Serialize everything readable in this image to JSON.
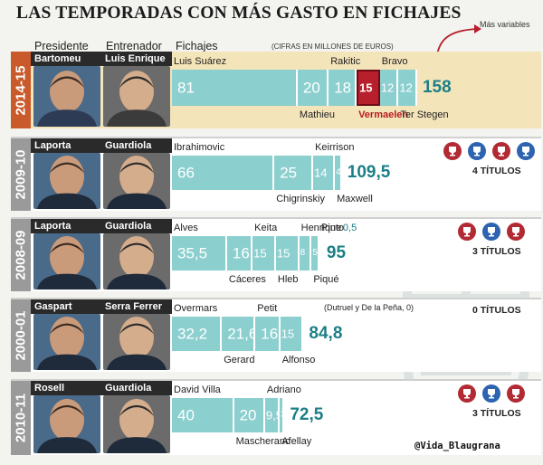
{
  "header": {
    "title": "LAS TEMPORADAS CON MÁS GASTO EN FICHAJES",
    "col_presidente": "Presidente",
    "col_entrenador": "Entrenador",
    "col_fichajes": "Fichajes",
    "note": "(CIFRAS EN MILLONES DE EUROS)",
    "variables_note": "Más variables"
  },
  "credit": "@Vida_Blaugrana",
  "colors": {
    "bar": "#8ccfcf",
    "bar_highlight": "#b61f2b",
    "band_highlight": "#f4e4b9",
    "band": "#ffffff",
    "total": "#1c7f86",
    "year_highlight": "#c85a2b",
    "year": "#9a9a9a"
  },
  "chart_data": {
    "type": "bar",
    "title": "LAS TEMPORADAS CON MÁS GASTO EN FICHAJES",
    "unit": "(CIFRAS EN MILLONES DE EUROS)",
    "seasons": [
      {
        "season": "2014-15",
        "presidente": "Bartomeu",
        "entrenador": "Luis Enrique",
        "total": "158",
        "total_value": 158,
        "titles": "",
        "trophies": [],
        "players": [
          {
            "name": "Luis Suárez",
            "value": 81,
            "label": "81"
          },
          {
            "name": "Mathieu",
            "value": 20,
            "label": "20"
          },
          {
            "name": "Rakitic",
            "value": 18,
            "label": "18"
          },
          {
            "name": "Vermaelen",
            "value": 15,
            "label": "15",
            "highlight": true
          },
          {
            "name": "Bravo",
            "value": 12,
            "label": "12"
          },
          {
            "name": "Ter Stegen",
            "value": 12,
            "label": "12"
          }
        ]
      },
      {
        "season": "2009-10",
        "presidente": "Laporta",
        "entrenador": "Guardiola",
        "total": "109,5",
        "total_value": 109.5,
        "titles": "4 TÍTULOS",
        "trophies": [
          "#b22a33",
          "#2d63b0",
          "#b22a33",
          "#2d63b0"
        ],
        "players": [
          {
            "name": "Ibrahimovic",
            "value": 66,
            "label": "66"
          },
          {
            "name": "Chigrinskiy",
            "value": 25,
            "label": "25"
          },
          {
            "name": "Keirrison",
            "value": 14,
            "label": "14"
          },
          {
            "name": "Maxwell",
            "value": 4.5,
            "label": "4,5"
          }
        ]
      },
      {
        "season": "2008-09",
        "presidente": "Laporta",
        "entrenador": "Guardiola",
        "total": "95",
        "total_value": 95,
        "titles": "3 TÍTULOS",
        "trophies": [
          "#b22a33",
          "#2d63b0",
          "#b22a33"
        ],
        "players": [
          {
            "name": "Alves",
            "value": 35.5,
            "label": "35,5"
          },
          {
            "name": "Cáceres",
            "value": 16.5,
            "label": "16,5"
          },
          {
            "name": "Keita",
            "value": 15,
            "label": "15"
          },
          {
            "name": "Hleb",
            "value": 15,
            "label": "15"
          },
          {
            "name": "Henrique",
            "value": 8,
            "label": "8"
          },
          {
            "name": "Piqué",
            "value": 5,
            "label": "5"
          },
          {
            "name": "Pinto",
            "value": 0.5,
            "label": "0,5"
          }
        ]
      },
      {
        "season": "2000-01",
        "presidente": "Gaspart",
        "entrenador": "Serra Ferrer",
        "total": "84,8",
        "total_value": 84.8,
        "titles": "0 TÍTULOS",
        "trophies": [],
        "extra_note": "(Dutruel y De la Peña, 0)",
        "players": [
          {
            "name": "Overmars",
            "value": 32.2,
            "label": "32,2"
          },
          {
            "name": "Gerard",
            "value": 21.6,
            "label": "21,6"
          },
          {
            "name": "Petit",
            "value": 16,
            "label": "16"
          },
          {
            "name": "Alfonso",
            "value": 15,
            "label": "15"
          }
        ]
      },
      {
        "season": "2010-11",
        "presidente": "Rosell",
        "entrenador": "Guardiola",
        "total": "72,5",
        "total_value": 72.5,
        "titles": "3 TÍTULOS",
        "trophies": [
          "#b22a33",
          "#2d63b0",
          "#b22a33"
        ],
        "players": [
          {
            "name": "David Villa",
            "value": 40,
            "label": "40"
          },
          {
            "name": "Mascherano",
            "value": 20,
            "label": "20"
          },
          {
            "name": "Adriano",
            "value": 9.5,
            "label": "9,5"
          },
          {
            "name": "Afellay",
            "value": 3,
            "label": "3"
          }
        ]
      }
    ]
  }
}
